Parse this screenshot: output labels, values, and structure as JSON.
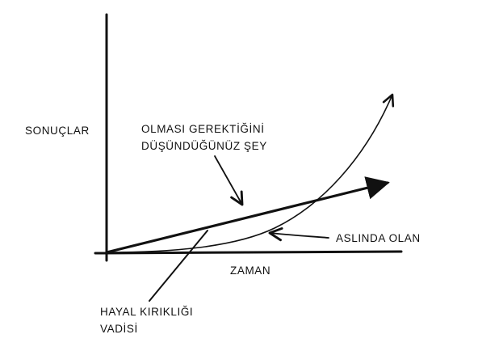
{
  "axes": {
    "y_label": "SONUÇLAR",
    "x_label": "ZAMAN"
  },
  "annotations": {
    "expected_line1": "OLMASI GEREKTİĞİNİ",
    "expected_line2": "DÜŞÜNDÜĞÜNÜZ ŞEY",
    "actual": "ASLINDA OLAN",
    "valley_line1": "HAYAL KIRIKLIĞI",
    "valley_line2": "VADİSİ"
  },
  "colors": {
    "ink": "#111111",
    "background": "#ffffff"
  }
}
